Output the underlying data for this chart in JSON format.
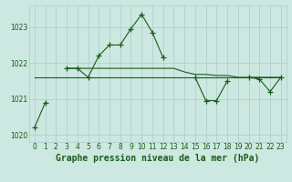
{
  "title": "Graphe pression niveau de la mer (hPa)",
  "x_values": [
    0,
    1,
    2,
    3,
    4,
    5,
    6,
    7,
    8,
    9,
    10,
    11,
    12,
    13,
    14,
    15,
    16,
    17,
    18,
    19,
    20,
    21,
    22,
    23
  ],
  "series_main": [
    1020.2,
    1020.9,
    null,
    1021.85,
    1021.85,
    1021.6,
    1022.2,
    1022.5,
    1022.5,
    1022.95,
    1023.35,
    1022.85,
    1022.15,
    null,
    null,
    1021.6,
    1020.95,
    1020.95,
    1021.5,
    null,
    1021.6,
    1021.55,
    1021.2,
    1021.6
  ],
  "series_flat": [
    1021.6,
    1021.6,
    1021.6,
    1021.6,
    1021.6,
    1021.6,
    1021.6,
    1021.6,
    1021.6,
    1021.6,
    1021.6,
    1021.6,
    1021.6,
    1021.6,
    1021.6,
    1021.6,
    1021.6,
    1021.6,
    1021.6,
    1021.6,
    1021.6,
    1021.6,
    1021.6,
    1021.6
  ],
  "series_trend_x": [
    3,
    4,
    5,
    6,
    7,
    8,
    9,
    10,
    11,
    12,
    13,
    14,
    15,
    16,
    17,
    18,
    19,
    20,
    21,
    22,
    23
  ],
  "series_trend_y": [
    1021.85,
    1021.85,
    1021.85,
    1021.85,
    1021.85,
    1021.85,
    1021.85,
    1021.85,
    1021.85,
    1021.85,
    1021.85,
    1021.75,
    1021.68,
    1021.68,
    1021.65,
    1021.65,
    1021.6,
    1021.6,
    1021.6,
    1021.6,
    1021.6
  ],
  "ylim": [
    1019.8,
    1023.6
  ],
  "yticks": [
    1020,
    1021,
    1022,
    1023
  ],
  "xlim": [
    -0.5,
    23.5
  ],
  "bg_color": "#cce8e0",
  "line_color": "#1a5c1a",
  "grid_color": "#aacccc",
  "text_color": "#1a5c1a",
  "title_fontsize": 7,
  "tick_fontsize": 5.5
}
